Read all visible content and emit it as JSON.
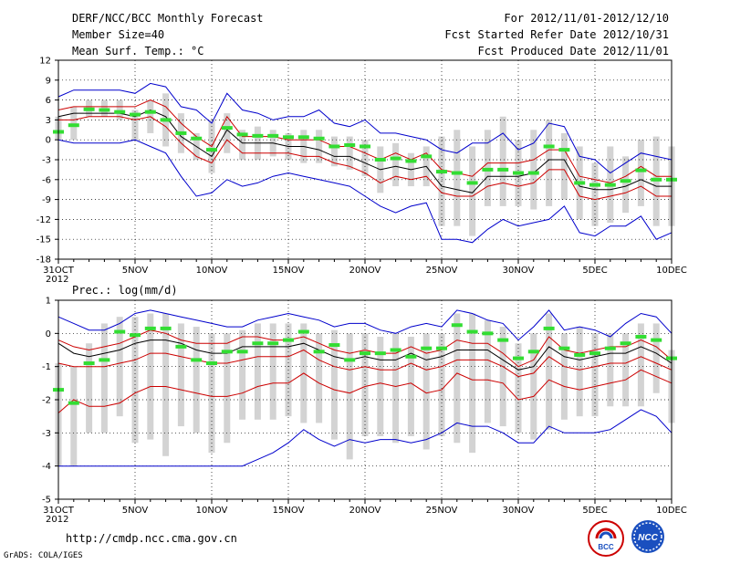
{
  "header": {
    "title": "DERF/NCC/BCC Monthly Forecast",
    "member_size": "Member Size=40",
    "variable": "Mean Surf. Temp.: °C",
    "period": "For 2012/11/01-2012/12/10",
    "fcst_started": "Fcst Started Refer Date 2012/10/31",
    "fcst_produced": "Fcst Produced Date 2012/11/01"
  },
  "footer": {
    "url": "http://cmdp.ncc.cma.gov.cn",
    "grads": "GrADS: COLA/IGES",
    "logo_bcc": "BCC",
    "logo_ncc": "NCC"
  },
  "colors": {
    "max_min": "#0000cc",
    "spread": "#cc0000",
    "mean": "#000000",
    "median": "#33dd33",
    "box": "#d3d3d3"
  },
  "chart_data": [
    {
      "type": "line",
      "title": "Mean Surf. Temp.: °C",
      "ylabel": "°C",
      "ylim": [
        -18,
        12
      ],
      "yticks": [
        12,
        9,
        6,
        3,
        0,
        -3,
        -6,
        -9,
        -12,
        -15,
        -18
      ],
      "x": [
        "31OCT",
        "1NOV",
        "2NOV",
        "3NOV",
        "4NOV",
        "5NOV",
        "6NOV",
        "7NOV",
        "8NOV",
        "9NOV",
        "10NOV",
        "11NOV",
        "12NOV",
        "13NOV",
        "14NOV",
        "15NOV",
        "16NOV",
        "17NOV",
        "18NOV",
        "19NOV",
        "20NOV",
        "21NOV",
        "22NOV",
        "23NOV",
        "24NOV",
        "25NOV",
        "26NOV",
        "27NOV",
        "28NOV",
        "29NOV",
        "30NOV",
        "1DEC",
        "2DEC",
        "3DEC",
        "4DEC",
        "5DEC",
        "6DEC",
        "7DEC",
        "8DEC",
        "9DEC",
        "10DEC"
      ],
      "xtick_labels": [
        {
          "i": 0,
          "label": "31OCT",
          "sub": "2012"
        },
        {
          "i": 5,
          "label": "5NOV"
        },
        {
          "i": 10,
          "label": "10NOV"
        },
        {
          "i": 15,
          "label": "15NOV"
        },
        {
          "i": 20,
          "label": "20NOV"
        },
        {
          "i": 25,
          "label": "25NOV"
        },
        {
          "i": 30,
          "label": "30NOV"
        },
        {
          "i": 35,
          "label": "5DEC"
        },
        {
          "i": 40,
          "label": "10DEC"
        }
      ],
      "series": [
        {
          "name": "max",
          "color": "#0000cc",
          "values": [
            6.5,
            7.5,
            7.5,
            7.5,
            7.5,
            7.0,
            8.5,
            8.0,
            5.0,
            4.5,
            2.5,
            7.0,
            4.5,
            4.0,
            3.0,
            3.5,
            3.5,
            4.5,
            2.5,
            2.0,
            3.0,
            1.0,
            1.0,
            0.5,
            0.0,
            -1.5,
            -2.0,
            -0.5,
            -0.5,
            1.0,
            -1.5,
            -0.5,
            2.5,
            2.0,
            -2.5,
            -3.0,
            -5.0,
            -3.5,
            -2.0,
            -2.5,
            -3.0
          ]
        },
        {
          "name": "upper",
          "color": "#cc0000",
          "values": [
            4.5,
            5.0,
            5.0,
            5.0,
            5.0,
            5.0,
            6.0,
            5.0,
            2.5,
            0.5,
            -1.0,
            3.5,
            0.5,
            0.5,
            0.5,
            0.0,
            0.0,
            0.0,
            -1.0,
            -1.0,
            -2.0,
            -3.0,
            -2.0,
            -3.0,
            -2.0,
            -4.5,
            -5.0,
            -5.5,
            -3.5,
            -3.5,
            -3.5,
            -3.0,
            -1.5,
            -1.5,
            -5.5,
            -6.0,
            -6.5,
            -5.5,
            -4.0,
            -5.5,
            -5.5
          ]
        },
        {
          "name": "mean",
          "color": "#000000",
          "values": [
            3.5,
            4.0,
            4.0,
            4.0,
            4.0,
            3.5,
            4.5,
            3.5,
            0.5,
            -1.0,
            -2.5,
            1.5,
            -0.5,
            -0.5,
            -0.5,
            -1.0,
            -1.0,
            -1.5,
            -2.5,
            -2.5,
            -3.5,
            -4.5,
            -4.0,
            -4.5,
            -4.0,
            -7.0,
            -7.5,
            -8.0,
            -5.5,
            -5.5,
            -5.5,
            -5.0,
            -3.0,
            -3.0,
            -7.0,
            -7.5,
            -7.5,
            -7.0,
            -6.0,
            -7.0,
            -7.0
          ]
        },
        {
          "name": "lower",
          "color": "#cc0000",
          "values": [
            3.0,
            3.0,
            3.5,
            3.5,
            3.5,
            3.0,
            3.5,
            2.0,
            -0.5,
            -2.5,
            -3.5,
            0.0,
            -2.0,
            -2.0,
            -2.0,
            -2.0,
            -2.5,
            -2.5,
            -3.5,
            -4.0,
            -5.0,
            -6.5,
            -5.5,
            -6.0,
            -5.5,
            -8.0,
            -8.5,
            -8.5,
            -7.0,
            -6.5,
            -7.0,
            -6.5,
            -4.5,
            -4.5,
            -8.5,
            -9.0,
            -8.5,
            -8.0,
            -7.0,
            -8.5,
            -8.5
          ]
        },
        {
          "name": "min",
          "color": "#0000cc",
          "values": [
            0.0,
            -0.5,
            -0.5,
            -0.5,
            -0.5,
            0.0,
            -1.0,
            -2.0,
            -5.5,
            -8.5,
            -8.0,
            -6.0,
            -7.0,
            -6.5,
            -5.5,
            -5.0,
            -5.5,
            -6.0,
            -6.5,
            -7.0,
            -8.5,
            -10.0,
            -11.0,
            -10.0,
            -9.5,
            -15.0,
            -15.0,
            -15.5,
            -13.5,
            -12.0,
            -13.0,
            -12.5,
            -12.0,
            -10.0,
            -14.0,
            -14.5,
            -13.0,
            -13.0,
            -11.5,
            -15.0,
            -14.0
          ]
        }
      ],
      "median": [
        1.2,
        2.2,
        4.6,
        4.5,
        4.2,
        3.8,
        4.2,
        3.0,
        1.0,
        0.2,
        -1.5,
        1.8,
        0.8,
        0.6,
        0.6,
        0.4,
        0.4,
        0.2,
        -1.0,
        -0.8,
        -1.0,
        -3.0,
        -2.8,
        -3.2,
        -2.5,
        -4.8,
        -5.0,
        -6.5,
        -4.5,
        -4.5,
        -5.0,
        -5.0,
        -1.0,
        -1.5,
        -6.5,
        -6.8,
        -6.8,
        -6.2,
        -4.6,
        -6.0,
        -6.0
      ],
      "box_hi": [
        3.5,
        5.0,
        6.0,
        6.0,
        6.0,
        4.5,
        6.0,
        7.0,
        4.0,
        1.0,
        3.0,
        4.0,
        1.5,
        2.0,
        1.5,
        1.0,
        1.5,
        1.5,
        0.5,
        0.5,
        0.0,
        -1.0,
        -0.5,
        -2.0,
        -1.0,
        0.5,
        1.5,
        -1.0,
        1.5,
        3.5,
        0.0,
        1.5,
        3.0,
        1.0,
        -1.0,
        -3.5,
        -1.0,
        -2.5,
        0.0,
        0.5,
        -1.0
      ],
      "box_lo": [
        0.0,
        0.0,
        3.5,
        3.5,
        3.0,
        0.0,
        1.0,
        -1.0,
        -2.0,
        -3.0,
        -5.0,
        -2.0,
        -3.0,
        -3.0,
        -2.5,
        -3.0,
        -3.5,
        -3.5,
        -4.0,
        -4.5,
        -5.5,
        -8.0,
        -7.0,
        -7.0,
        -7.0,
        -13.0,
        -13.0,
        -14.5,
        -10.0,
        -10.0,
        -10.0,
        -10.5,
        -10.0,
        -9.0,
        -12.0,
        -13.0,
        -12.5,
        -11.0,
        -10.0,
        -13.0,
        -13.0
      ]
    },
    {
      "type": "line",
      "title": "Prec.: log(mm/d)",
      "ylabel": "log(mm/d)",
      "ylim": [
        -5,
        1
      ],
      "yticks": [
        1,
        0,
        -1,
        -2,
        -3,
        -4,
        -5
      ],
      "x": [
        "31OCT",
        "1NOV",
        "2NOV",
        "3NOV",
        "4NOV",
        "5NOV",
        "6NOV",
        "7NOV",
        "8NOV",
        "9NOV",
        "10NOV",
        "11NOV",
        "12NOV",
        "13NOV",
        "14NOV",
        "15NOV",
        "16NOV",
        "17NOV",
        "18NOV",
        "19NOV",
        "20NOV",
        "21NOV",
        "22NOV",
        "23NOV",
        "24NOV",
        "25NOV",
        "26NOV",
        "27NOV",
        "28NOV",
        "29NOV",
        "30NOV",
        "1DEC",
        "2DEC",
        "3DEC",
        "4DEC",
        "5DEC",
        "6DEC",
        "7DEC",
        "8DEC",
        "9DEC",
        "10DEC"
      ],
      "xtick_labels": [
        {
          "i": 0,
          "label": "31OCT",
          "sub": "2012"
        },
        {
          "i": 5,
          "label": "5NOV"
        },
        {
          "i": 10,
          "label": "10NOV"
        },
        {
          "i": 15,
          "label": "15NOV"
        },
        {
          "i": 20,
          "label": "20NOV"
        },
        {
          "i": 25,
          "label": "25NOV"
        },
        {
          "i": 30,
          "label": "30NOV"
        },
        {
          "i": 35,
          "label": "5DEC"
        },
        {
          "i": 40,
          "label": "10DEC"
        }
      ],
      "series": [
        {
          "name": "max",
          "color": "#0000cc",
          "values": [
            0.5,
            0.3,
            0.1,
            0.1,
            0.3,
            0.6,
            0.7,
            0.6,
            0.5,
            0.4,
            0.3,
            0.2,
            0.2,
            0.4,
            0.5,
            0.6,
            0.5,
            0.4,
            0.2,
            0.3,
            0.3,
            0.1,
            0.0,
            0.2,
            0.3,
            0.2,
            0.7,
            0.6,
            0.4,
            0.3,
            -0.2,
            0.2,
            0.7,
            0.1,
            0.2,
            0.1,
            -0.1,
            0.3,
            0.6,
            0.5,
            0.0
          ]
        },
        {
          "name": "upper",
          "color": "#cc0000",
          "values": [
            -0.2,
            -0.4,
            -0.5,
            -0.4,
            -0.3,
            -0.1,
            0.1,
            0.0,
            -0.2,
            -0.3,
            -0.3,
            -0.3,
            -0.1,
            -0.1,
            -0.2,
            -0.2,
            -0.1,
            -0.3,
            -0.5,
            -0.6,
            -0.5,
            -0.6,
            -0.6,
            -0.4,
            -0.6,
            -0.5,
            -0.2,
            -0.3,
            -0.3,
            -0.6,
            -1.0,
            -0.8,
            -0.1,
            -0.5,
            -0.6,
            -0.5,
            -0.4,
            -0.4,
            -0.2,
            -0.4,
            -0.8
          ]
        },
        {
          "name": "mean",
          "color": "#000000",
          "values": [
            -0.3,
            -0.6,
            -0.7,
            -0.6,
            -0.5,
            -0.3,
            -0.2,
            -0.2,
            -0.3,
            -0.5,
            -0.6,
            -0.6,
            -0.4,
            -0.4,
            -0.4,
            -0.4,
            -0.3,
            -0.5,
            -0.7,
            -0.8,
            -0.7,
            -0.8,
            -0.8,
            -0.6,
            -0.8,
            -0.7,
            -0.5,
            -0.5,
            -0.5,
            -0.8,
            -1.1,
            -1.0,
            -0.4,
            -0.7,
            -0.8,
            -0.7,
            -0.6,
            -0.6,
            -0.4,
            -0.6,
            -0.9
          ]
        },
        {
          "name": "lower",
          "color": "#cc0000",
          "values": [
            -0.9,
            -1.0,
            -1.0,
            -1.0,
            -0.9,
            -0.8,
            -0.6,
            -0.6,
            -0.7,
            -0.8,
            -0.9,
            -0.9,
            -0.8,
            -0.7,
            -0.7,
            -0.7,
            -0.5,
            -0.8,
            -1.0,
            -1.1,
            -1.0,
            -1.1,
            -1.1,
            -0.9,
            -1.1,
            -1.0,
            -0.8,
            -0.8,
            -0.8,
            -1.0,
            -1.3,
            -1.2,
            -0.7,
            -1.0,
            -1.1,
            -1.0,
            -0.9,
            -0.9,
            -0.7,
            -0.9,
            -1.1
          ]
        },
        {
          "name": "lower2",
          "color": "#cc0000",
          "values": [
            -2.4,
            -2.0,
            -2.2,
            -2.2,
            -2.1,
            -1.8,
            -1.6,
            -1.6,
            -1.7,
            -1.8,
            -1.9,
            -1.9,
            -1.8,
            -1.6,
            -1.5,
            -1.5,
            -1.2,
            -1.5,
            -1.7,
            -1.8,
            -1.6,
            -1.5,
            -1.6,
            -1.5,
            -1.8,
            -1.7,
            -1.2,
            -1.4,
            -1.4,
            -1.5,
            -2.0,
            -1.9,
            -1.4,
            -1.6,
            -1.7,
            -1.6,
            -1.5,
            -1.4,
            -1.1,
            -1.3,
            -1.5
          ]
        },
        {
          "name": "min",
          "color": "#0000cc",
          "values": [
            -4.0,
            -4.0,
            -4.0,
            -4.0,
            -4.0,
            -4.0,
            -4.0,
            -4.0,
            -4.0,
            -4.0,
            -4.0,
            -4.0,
            -4.0,
            -3.8,
            -3.6,
            -3.3,
            -2.9,
            -3.2,
            -3.4,
            -3.2,
            -3.3,
            -3.2,
            -3.2,
            -3.3,
            -3.2,
            -3.0,
            -2.7,
            -2.8,
            -2.8,
            -3.0,
            -3.3,
            -3.3,
            -2.8,
            -3.0,
            -3.0,
            -3.0,
            -2.9,
            -2.6,
            -2.3,
            -2.5,
            -3.0
          ]
        }
      ],
      "median": [
        -1.7,
        -2.1,
        -0.9,
        -0.8,
        0.05,
        -0.05,
        0.15,
        0.15,
        -0.4,
        -0.8,
        -0.9,
        -0.55,
        -0.55,
        -0.3,
        -0.3,
        -0.2,
        0.05,
        -0.55,
        -0.35,
        -0.8,
        -0.6,
        -0.6,
        -0.5,
        -0.7,
        -0.45,
        -0.45,
        0.25,
        0.05,
        0.0,
        -0.2,
        -0.75,
        -0.55,
        0.15,
        -0.45,
        -0.65,
        -0.6,
        -0.45,
        -0.3,
        -0.1,
        -0.2,
        -0.75
      ],
      "box_hi": [
        -0.9,
        -1.0,
        -0.3,
        0.3,
        0.5,
        0.5,
        0.6,
        0.6,
        0.3,
        0.2,
        0.0,
        0.0,
        0.1,
        0.3,
        0.3,
        0.3,
        0.3,
        0.0,
        0.1,
        0.0,
        0.0,
        -0.1,
        0.0,
        -0.1,
        0.0,
        0.0,
        0.6,
        0.6,
        0.4,
        0.2,
        -0.3,
        0.0,
        0.6,
        0.0,
        0.2,
        0.0,
        0.0,
        0.0,
        0.3,
        0.3,
        -0.5
      ],
      "box_lo": [
        -4.0,
        -4.0,
        -3.0,
        -3.0,
        -2.5,
        -3.3,
        -3.2,
        -3.7,
        -2.8,
        -3.0,
        -3.6,
        -3.3,
        -2.6,
        -2.6,
        -2.6,
        -2.5,
        -2.7,
        -2.7,
        -3.2,
        -3.8,
        -3.1,
        -3.1,
        -3.3,
        -3.1,
        -3.5,
        -3.1,
        -3.3,
        -3.6,
        -2.7,
        -2.8,
        -3.0,
        -3.2,
        -2.9,
        -2.6,
        -2.5,
        -2.5,
        -2.2,
        -2.2,
        -2.2,
        -1.8,
        -2.7
      ]
    }
  ]
}
